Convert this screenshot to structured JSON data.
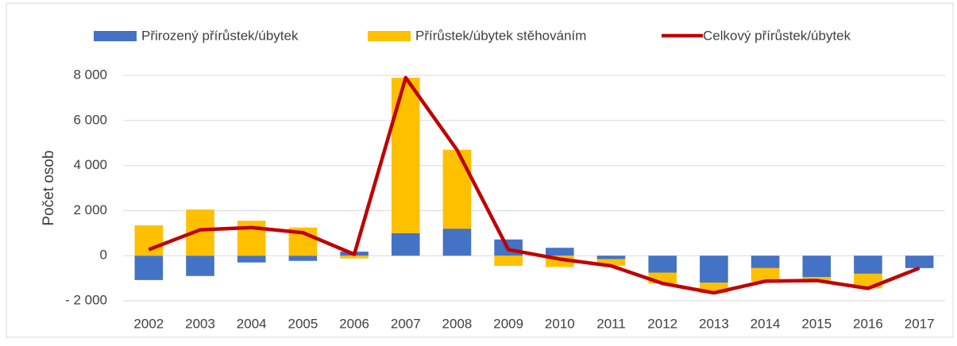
{
  "chart_data": {
    "type": "bar",
    "stacked": true,
    "y_label": "Počet osob",
    "categories": [
      "2002",
      "2003",
      "2004",
      "2005",
      "2006",
      "2007",
      "2008",
      "2009",
      "2010",
      "2011",
      "2012",
      "2013",
      "2014",
      "2015",
      "2016",
      "2017"
    ],
    "series": [
      {
        "name": "Přirozený přírůstek/úbytek",
        "type": "bar",
        "color": "#4472c4",
        "values": [
          -1080,
          -900,
          -300,
          -230,
          180,
          1000,
          1200,
          720,
          350,
          -150,
          -750,
          -1200,
          -550,
          -950,
          -800,
          -550
        ]
      },
      {
        "name": "Přírůstek/úbytek stěhováním",
        "type": "bar",
        "color": "#ffc000",
        "values": [
          1350,
          2050,
          1550,
          1250,
          -120,
          6900,
          3500,
          -450,
          -500,
          -300,
          -480,
          -450,
          -600,
          -150,
          -650,
          0
        ]
      },
      {
        "name": "Celkový přírůstek/úbytek",
        "type": "line",
        "color": "#c00000",
        "values": [
          270,
          1150,
          1250,
          1020,
          60,
          7900,
          4690,
          270,
          -150,
          -450,
          -1230,
          -1650,
          -1130,
          -1100,
          -1450,
          -550
        ]
      }
    ],
    "ylim": [
      -2000,
      8000
    ],
    "yticks": [
      {
        "value": -2000,
        "label": "- 2 000"
      },
      0,
      {
        "value": 2000,
        "label": "2 000"
      },
      {
        "value": 4000,
        "label": "4 000"
      },
      {
        "value": 6000,
        "label": "6 000"
      },
      {
        "value": 8000,
        "label": "8 000"
      }
    ],
    "grid": true,
    "legend": "top"
  }
}
